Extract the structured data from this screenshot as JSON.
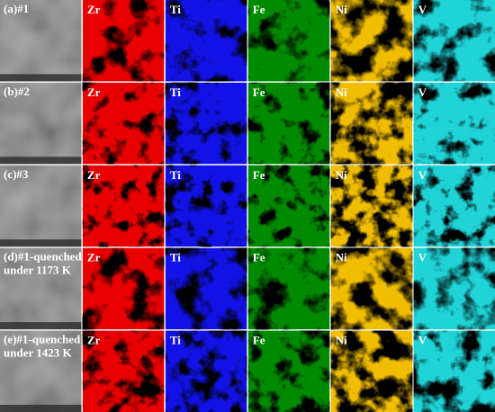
{
  "rows": [
    {
      "label": [
        "(a)#1"
      ]
    },
    {
      "label": [
        "(b)#2"
      ]
    },
    {
      "label": [
        "(c)#3"
      ]
    },
    {
      "label": [
        "(d)#1-quenched",
        "under 1173 K"
      ]
    },
    {
      "label": [
        "(e)#1-quenched",
        "under 1423 K"
      ]
    }
  ],
  "elements": [
    "Zr",
    "Ti",
    "Fe",
    "Ni",
    "V"
  ]
}
